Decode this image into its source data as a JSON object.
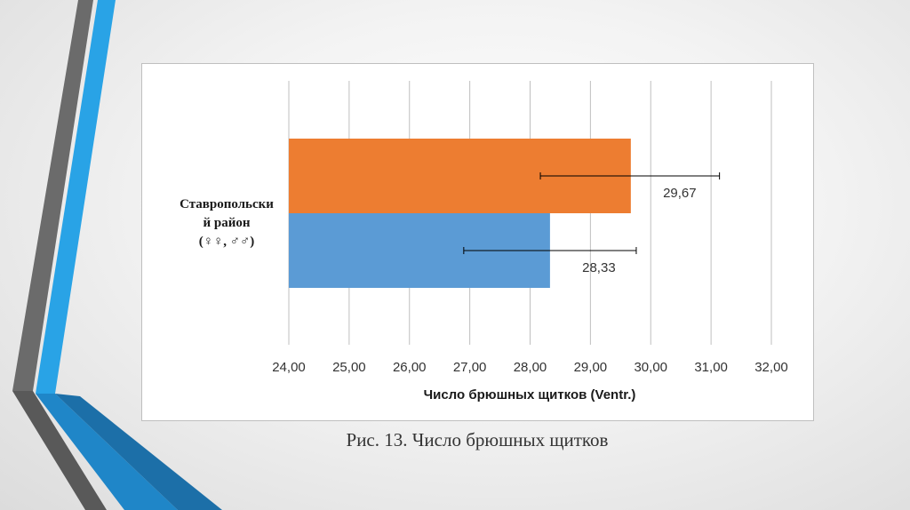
{
  "chart_data": {
    "type": "bar",
    "orientation": "horizontal",
    "categories": [
      "Ставропольский район (♀♀, ♂♂)"
    ],
    "category_label_lines": [
      "Ставропольски",
      "й район",
      "(♀♀, ♂♂)"
    ],
    "series": [
      {
        "values": [
          29.67
        ],
        "error_minus": [
          1.5
        ],
        "error_plus": [
          1.47
        ],
        "color": "#ed7d31"
      },
      {
        "values": [
          28.33
        ],
        "error_minus": [
          1.43
        ],
        "error_plus": [
          1.43
        ],
        "color": "#5b9bd5"
      }
    ],
    "data_labels": [
      "29,67",
      "28,33"
    ],
    "xlabel": "Число брюшных щитков (Ventr.)",
    "xlim": [
      24,
      32
    ],
    "xticks": [
      24,
      25,
      26,
      27,
      28,
      29,
      30,
      31,
      32
    ],
    "xtick_labels": [
      "24,00",
      "25,00",
      "26,00",
      "27,00",
      "28,00",
      "29,00",
      "30,00",
      "31,00",
      "32,00"
    ],
    "grid": true,
    "legend": false
  },
  "caption": "Рис. 13. Число брюшных щитков",
  "colors": {
    "gray_stripe": "#6b6b6b",
    "blue_stripe": "#29a3e6",
    "dark_blue": "#1c6fa8"
  }
}
